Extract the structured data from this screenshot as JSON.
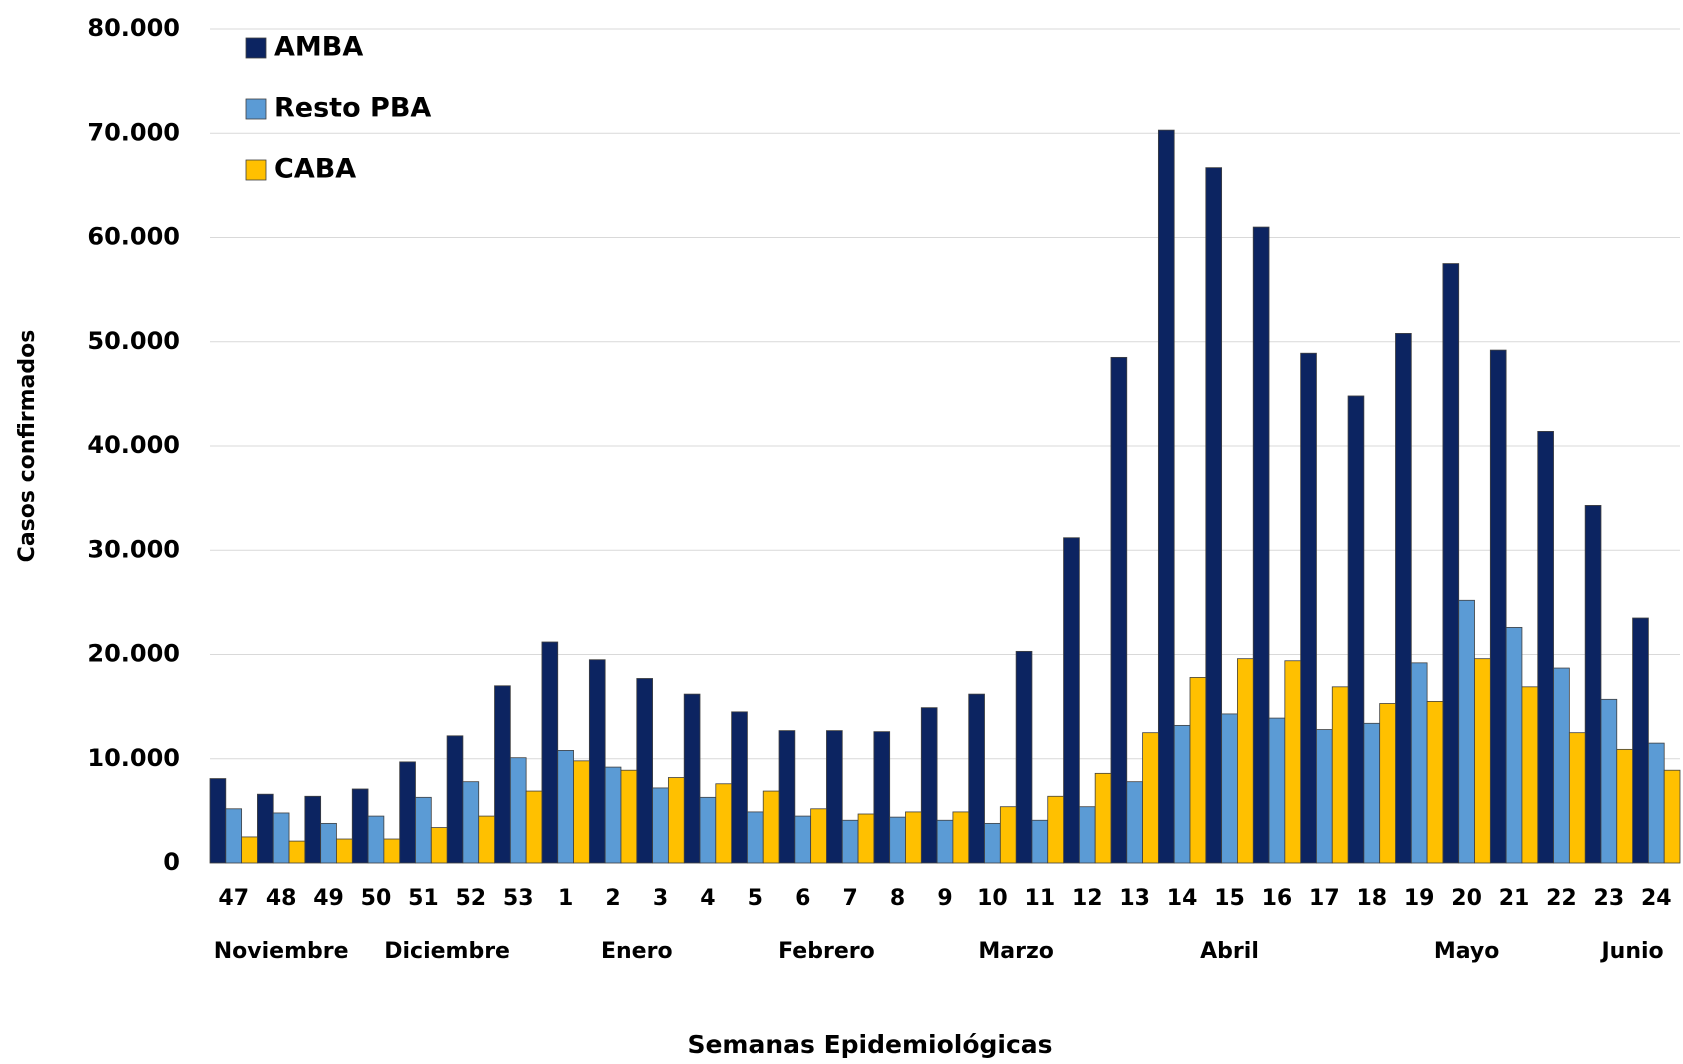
{
  "chart_data": {
    "type": "bar",
    "x_label": "Semanas Epidemiológicas",
    "y_label": "Casos confirmados",
    "categories": [
      "47",
      "48",
      "49",
      "50",
      "51",
      "52",
      "53",
      "1",
      "2",
      "3",
      "4",
      "5",
      "6",
      "7",
      "8",
      "9",
      "10",
      "11",
      "12",
      "13",
      "14",
      "15",
      "16",
      "17",
      "18",
      "19",
      "20",
      "21",
      "22",
      "23",
      "24"
    ],
    "month_groups": [
      {
        "label": "Noviembre",
        "count": 3
      },
      {
        "label": "Diciembre",
        "count": 4
      },
      {
        "label": "Enero",
        "count": 4
      },
      {
        "label": "Febrero",
        "count": 4
      },
      {
        "label": "Marzo",
        "count": 4
      },
      {
        "label": "Abril",
        "count": 5
      },
      {
        "label": "Mayo",
        "count": 5
      },
      {
        "label": "Junio",
        "count": 2
      }
    ],
    "series": [
      {
        "name": "AMBA",
        "color": "#0c2461",
        "values": [
          8100,
          6600,
          6400,
          7100,
          9700,
          12200,
          17000,
          21200,
          19500,
          17700,
          16200,
          14500,
          12700,
          12700,
          12600,
          14900,
          16200,
          20300,
          31200,
          48500,
          70300,
          66700,
          61000,
          48900,
          44800,
          50800,
          57500,
          49200,
          41400,
          34300,
          23500
        ]
      },
      {
        "name": "Resto PBA",
        "color": "#5b9bd5",
        "values": [
          5200,
          4800,
          3800,
          4500,
          6300,
          7800,
          10100,
          10800,
          9200,
          7200,
          6300,
          4900,
          4500,
          4100,
          4400,
          4100,
          3800,
          4100,
          5400,
          7800,
          13200,
          14300,
          13900,
          12800,
          13400,
          19200,
          25200,
          22600,
          18700,
          15700,
          11500
        ]
      },
      {
        "name": "CABA",
        "color": "#ffc000",
        "values": [
          2500,
          2100,
          2300,
          2300,
          3400,
          4500,
          6900,
          9800,
          8900,
          8200,
          7600,
          6900,
          5200,
          4700,
          4900,
          4900,
          5400,
          6400,
          8600,
          12500,
          17800,
          19600,
          19400,
          16900,
          15300,
          15500,
          19600,
          16900,
          12500,
          10900,
          8900
        ]
      }
    ],
    "ylim": [
      0,
      80000
    ],
    "yticks": [
      0,
      {
        "value": 10000,
        "label": "10.000"
      },
      {
        "value": 20000,
        "label": "20.000"
      },
      {
        "value": 30000,
        "label": "30.000"
      },
      {
        "value": 40000,
        "label": "40.000"
      },
      {
        "value": 50000,
        "label": "50.000"
      },
      {
        "value": 60000,
        "label": "60.000"
      },
      {
        "value": 70000,
        "label": "70.000"
      },
      {
        "value": 80000,
        "label": "80.000"
      }
    ],
    "grid": true,
    "legend": "top-left"
  }
}
